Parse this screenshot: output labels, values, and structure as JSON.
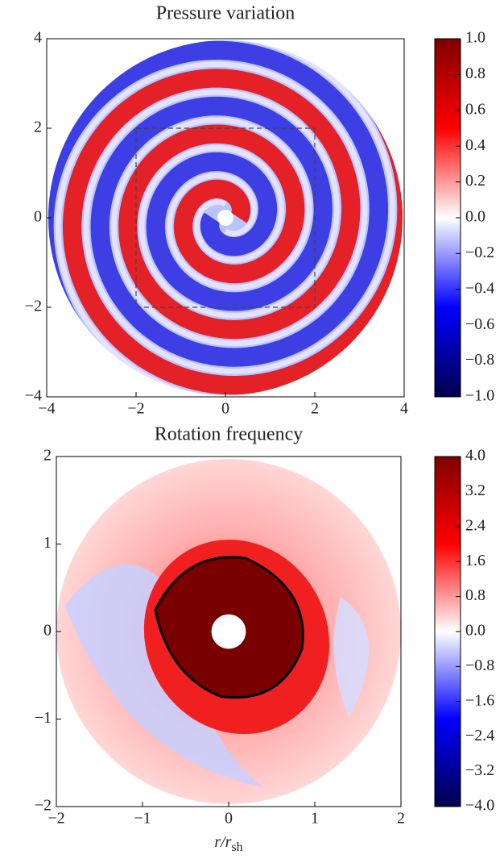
{
  "chart_data": [
    {
      "type": "field",
      "title": "Pressure variation",
      "xlim": [
        -4,
        4
      ],
      "ylim": [
        -4,
        4
      ],
      "xticks": [
        {
          "value": -4,
          "label": "−4"
        },
        {
          "value": -2,
          "label": "−2"
        },
        0,
        2,
        4
      ],
      "yticks": [
        {
          "value": -4,
          "label": "−4"
        },
        {
          "value": -2,
          "label": "−2"
        },
        0,
        2,
        4
      ],
      "inset_box": [
        -2,
        2,
        -2,
        2
      ],
      "colorbar": {
        "lim": [
          -1,
          1
        ],
        "colors": [
          "#00004c",
          "#0000ff",
          "#ffffff",
          "#ff0000",
          "#800000"
        ],
        "ticks": [
          {
            "value": -1,
            "label": "−1.0"
          },
          {
            "value": -0.8,
            "label": "−0.8"
          },
          {
            "value": -0.6,
            "label": "−0.6"
          },
          {
            "value": -0.4,
            "label": "−0.4"
          },
          {
            "value": -0.2,
            "label": "−0.2"
          },
          {
            "value": 0,
            "label": "0.0"
          },
          0.2,
          0.4,
          0.6,
          0.8,
          {
            "value": 1,
            "label": "1.0"
          }
        ]
      }
    },
    {
      "type": "field",
      "title": "Rotation frequency",
      "xlabel": "r/r",
      "xlabel_subscript": "sh",
      "xlim": [
        -2,
        2
      ],
      "ylim": [
        -2,
        2
      ],
      "xticks": [
        {
          "value": -2,
          "label": "−2"
        },
        {
          "value": -1,
          "label": "−1"
        },
        0,
        1,
        2
      ],
      "yticks": [
        {
          "value": -2,
          "label": "−2"
        },
        {
          "value": -1,
          "label": "−1"
        },
        0,
        1,
        2
      ],
      "colorbar": {
        "lim": [
          -4,
          4
        ],
        "colors": [
          "#00004c",
          "#0000ff",
          "#ffffff",
          "#ff0000",
          "#800000"
        ],
        "ticks": [
          {
            "value": -4,
            "label": "−4.0"
          },
          {
            "value": -3.2,
            "label": "−3.2"
          },
          {
            "value": -2.4,
            "label": "−2.4"
          },
          {
            "value": -1.6,
            "label": "−1.6"
          },
          {
            "value": -0.8,
            "label": "−0.8"
          },
          {
            "value": 0,
            "label": "0.0"
          },
          0.8,
          1.6,
          2.4,
          3.2,
          {
            "value": 4,
            "label": "4.0"
          }
        ]
      }
    }
  ]
}
